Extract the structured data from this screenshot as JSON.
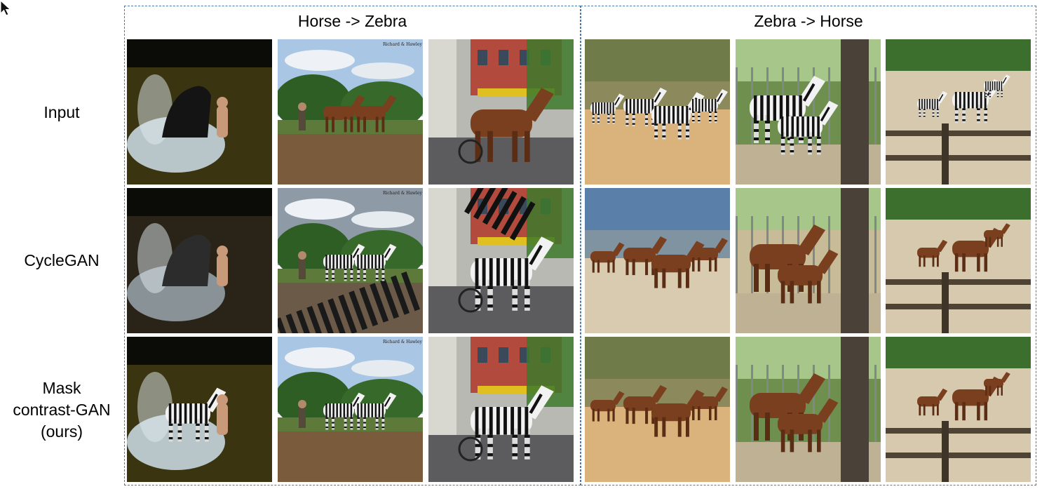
{
  "groups": [
    {
      "title": "Horse -> Zebra"
    },
    {
      "title": "Zebra -> Horse"
    }
  ],
  "rows": [
    {
      "label_lines": [
        "Input"
      ]
    },
    {
      "label_lines": [
        "CycleGAN"
      ]
    },
    {
      "label_lines": [
        "Mask",
        "contrast-GAN",
        "(ours)"
      ]
    }
  ],
  "tiles": [
    [
      "input-horse-splash",
      "input-horses-plough",
      "input-horse-rider-street",
      "input-zebras-field",
      "input-zebras-fence",
      "input-zebras-enclosure"
    ],
    [
      "cyclegan-splash",
      "cyclegan-plough",
      "cyclegan-street",
      "cyclegan-field",
      "cyclegan-fence",
      "cyclegan-enclosure"
    ],
    [
      "ours-zebra-splash",
      "ours-zebras-plough",
      "ours-zebra-street",
      "ours-horses-field",
      "ours-horses-fence",
      "ours-horses-enclosure"
    ]
  ],
  "photo_caption": "Richard & Hawley",
  "colors": {
    "border": "#4a78a8"
  },
  "icons": {
    "cursor": "mouse-pointer-icon"
  }
}
